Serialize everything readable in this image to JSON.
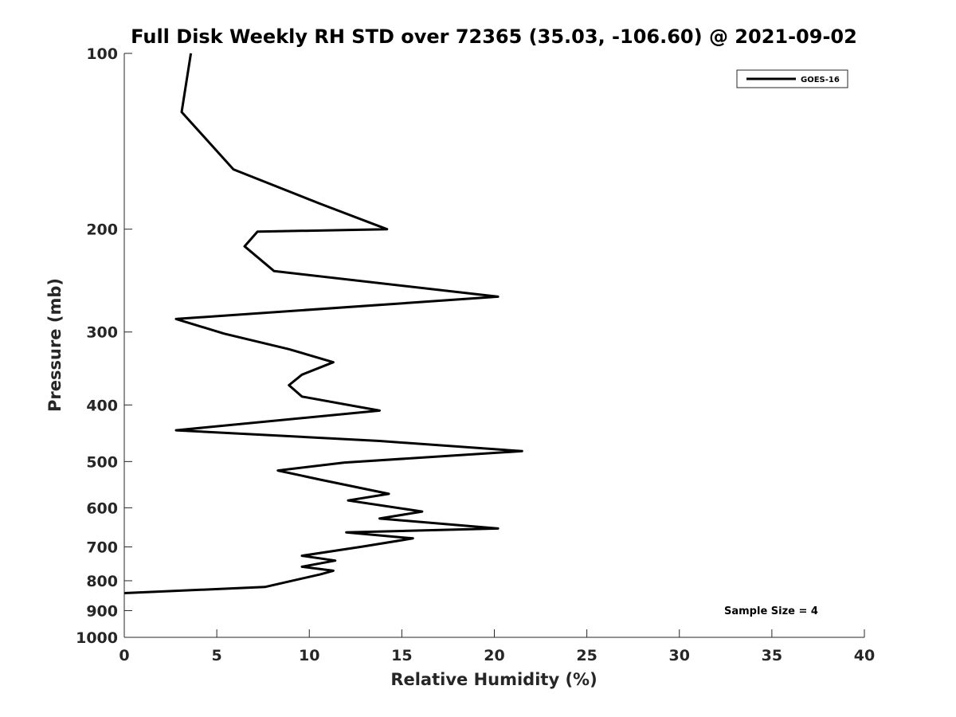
{
  "chart_data": {
    "type": "line",
    "title": "Full Disk Weekly RH STD over 72365 (35.03, -106.60) @ 2021-09-02",
    "xlabel": "Relative Humidity (%)",
    "ylabel": "Pressure (mb)",
    "xlim": [
      0,
      40
    ],
    "ylim": [
      100,
      1000
    ],
    "y_scale": "log",
    "y_reversed": true,
    "grid": false,
    "legend_position": "top-right",
    "x_ticks": [
      0,
      5,
      10,
      15,
      20,
      25,
      30,
      35,
      40
    ],
    "x_tick_labels": [
      "0",
      "5",
      "10",
      "15",
      "20",
      "25",
      "30",
      "35",
      "40"
    ],
    "y_ticks": [
      100,
      200,
      300,
      400,
      500,
      600,
      700,
      800,
      900,
      1000
    ],
    "y_tick_labels": [
      "100",
      "200",
      "300",
      "400",
      "500",
      "600",
      "700",
      "800",
      "900",
      "1000"
    ],
    "series": [
      {
        "name": "GOES-16",
        "color": "#000000",
        "x": [
          3.6,
          3.1,
          5.9,
          10.6,
          14.2,
          7.2,
          6.5,
          8.1,
          20.2,
          2.8,
          5.4,
          8.9,
          11.3,
          9.6,
          8.9,
          9.6,
          13.8,
          2.8,
          13.8,
          21.5,
          11.9,
          8.3,
          10.6,
          14.3,
          12.1,
          16.1,
          13.8,
          20.2,
          12.0,
          15.6,
          12.9,
          9.6,
          11.4,
          9.6,
          11.3,
          10.6,
          7.6,
          0.0
        ],
        "y": [
          100,
          126,
          158,
          181,
          200,
          202,
          214,
          236,
          261,
          285,
          302,
          321,
          338,
          355,
          370,
          387,
          409,
          442,
          461,
          480,
          502,
          518,
          537,
          568,
          583,
          609,
          626,
          651,
          661,
          677,
          699,
          725,
          739,
          757,
          769,
          780,
          820,
          840
        ]
      }
    ],
    "annotation": "Sample Size = 4"
  }
}
